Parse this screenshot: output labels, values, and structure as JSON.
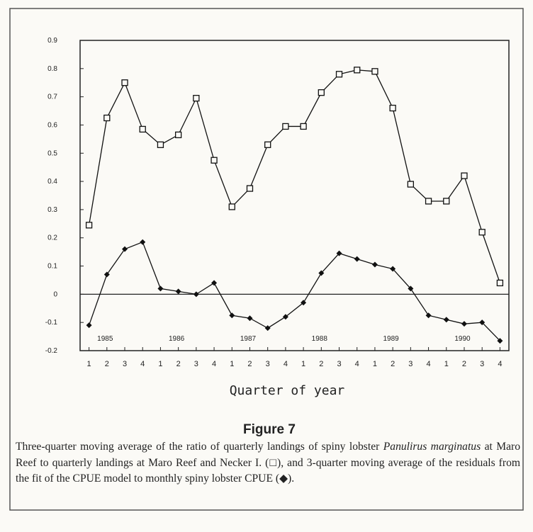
{
  "chart_data": {
    "type": "line",
    "title": "Figure 7",
    "x_label": "Quarter of year",
    "categories": [
      "1",
      "2",
      "3",
      "4",
      "1",
      "2",
      "3",
      "4",
      "1",
      "2",
      "3",
      "4",
      "1",
      "2",
      "3",
      "4",
      "1",
      "2",
      "3",
      "4",
      "1",
      "2",
      "3",
      "4"
    ],
    "year_labels": [
      "1985",
      "1986",
      "1987",
      "1988",
      "1989",
      "1990"
    ],
    "series": [
      {
        "color": "#111111",
        "marker": "square",
        "values": [
          0.245,
          0.625,
          0.75,
          0.585,
          0.53,
          0.565,
          0.695,
          0.475,
          0.31,
          0.375,
          0.53,
          0.595,
          0.595,
          0.715,
          0.78,
          0.795,
          0.79,
          0.66,
          0.39,
          0.33,
          0.33,
          0.42,
          0.22,
          0.04
        ]
      },
      {
        "color": "#111111",
        "marker": "diamond",
        "values": [
          -0.11,
          0.07,
          0.16,
          0.185,
          0.02,
          0.01,
          0.0,
          0.04,
          -0.075,
          -0.085,
          -0.12,
          -0.08,
          -0.03,
          0.075,
          0.145,
          0.125,
          0.105,
          0.09,
          0.02,
          -0.075,
          -0.09,
          -0.105,
          -0.1,
          -0.165
        ]
      }
    ],
    "ylim": [
      -0.2,
      0.9
    ],
    "yticks": [
      -0.2,
      -0.1,
      0,
      0.1,
      0.2,
      0.3,
      0.4,
      0.5,
      0.6,
      0.7,
      0.8,
      0.9
    ],
    "zero_line": true,
    "caption": [
      "Three-quarter moving average of the ratio of quarterly landings of spiny lobster ",
      "Panulirus marginatus",
      " at Maro Reef to quarterly landings at Maro Reef and Necker I. (□), and 3-quarter moving average of the residuals from the fit of the CPUE model to monthly spiny lobster CPUE (◆)."
    ]
  }
}
